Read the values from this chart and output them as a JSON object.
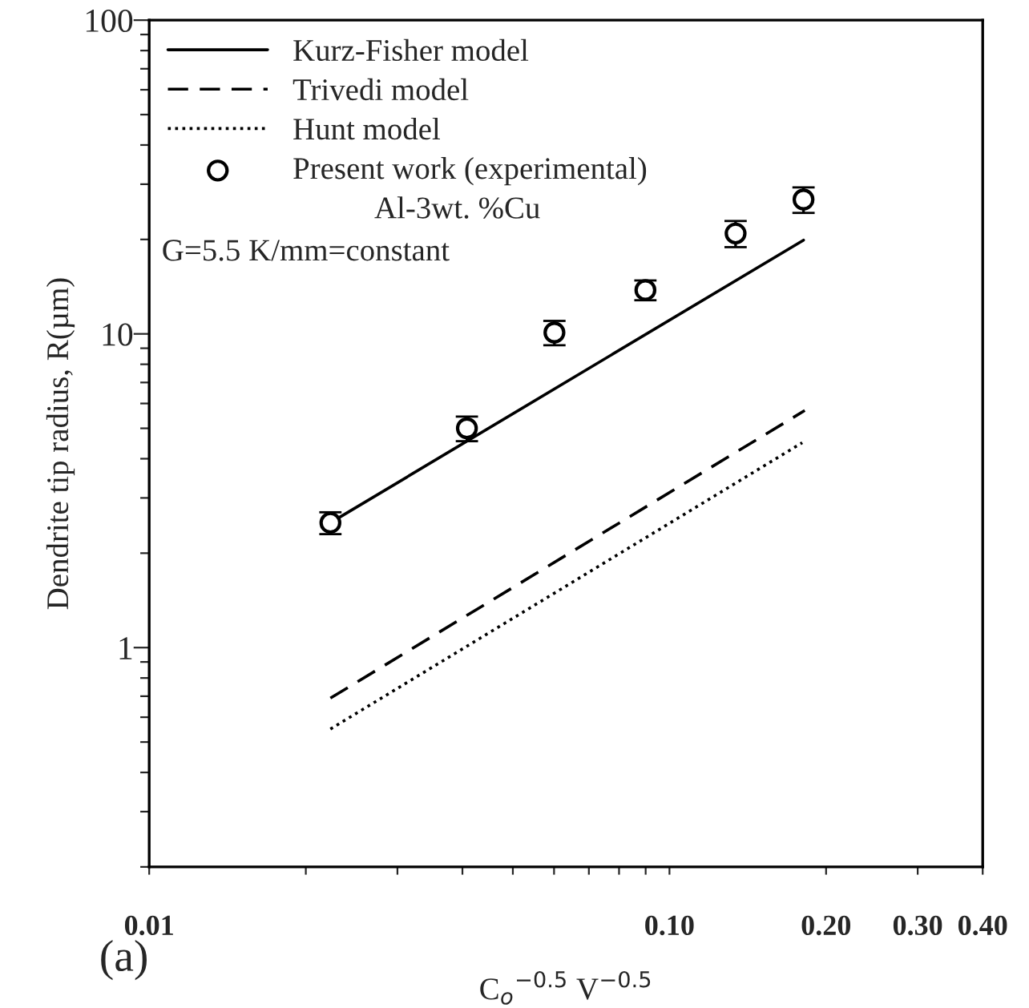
{
  "chart_data": {
    "type": "line",
    "xlabel": "C$_{o}$$^{−0.5}$ V$^{−0.5}$",
    "ylabel": "Dendrite tip radius, R(µm)",
    "annotations": [
      "Al-3wt. %Cu",
      "G=5.5 K/mm=constant",
      "(a)"
    ],
    "log": "xy",
    "legend": "top left",
    "grid": false,
    "xlim": [
      0.01,
      0.4
    ],
    "ylim": [
      0.2,
      100
    ],
    "xticks": [
      {
        "value": 0.01,
        "label": "0.01"
      },
      {
        "value": 0.02,
        "label": null
      },
      {
        "value": 0.03,
        "label": null
      },
      {
        "value": 0.04,
        "label": null
      },
      {
        "value": 0.05,
        "label": null
      },
      {
        "value": 0.06,
        "label": null
      },
      {
        "value": 0.07,
        "label": null
      },
      {
        "value": 0.08,
        "label": null
      },
      {
        "value": 0.09,
        "label": null
      },
      {
        "value": 0.1,
        "label": "0.10"
      },
      {
        "value": 0.2,
        "label": "0.20"
      },
      {
        "value": 0.3,
        "label": "0.30"
      },
      {
        "value": 0.4,
        "label": "0.40"
      }
    ],
    "yticks": [
      {
        "value": 0.2,
        "label": null
      },
      {
        "value": 0.3,
        "label": null
      },
      {
        "value": 0.4,
        "label": null
      },
      {
        "value": 0.5,
        "label": null
      },
      {
        "value": 0.6,
        "label": null
      },
      {
        "value": 0.7,
        "label": null
      },
      {
        "value": 0.8,
        "label": null
      },
      {
        "value": 0.9,
        "label": null
      },
      1,
      {
        "value": 2,
        "label": null
      },
      {
        "value": 3,
        "label": null
      },
      {
        "value": 4,
        "label": null
      },
      {
        "value": 5,
        "label": null
      },
      {
        "value": 6,
        "label": null
      },
      {
        "value": 7,
        "label": null
      },
      {
        "value": 8,
        "label": null
      },
      {
        "value": 9,
        "label": null
      },
      10,
      {
        "value": 20,
        "label": null
      },
      {
        "value": 30,
        "label": null
      },
      {
        "value": 40,
        "label": null
      },
      {
        "value": 50,
        "label": null
      },
      {
        "value": 60,
        "label": null
      },
      {
        "value": 70,
        "label": null
      },
      {
        "value": 80,
        "label": null
      },
      {
        "value": 90,
        "label": null
      },
      100
    ],
    "series": [
      {
        "name": "Kurz-Fisher model",
        "color": "#000000",
        "line_style": "solid",
        "marker": "none",
        "x": [
          0.0223,
          0.181
        ],
        "values": [
          2.5,
          19.9
        ]
      },
      {
        "name": "Trivedi model",
        "color": "#000000",
        "line_style": "dashed",
        "marker": "none",
        "x": [
          0.0223,
          0.182
        ],
        "values": [
          0.69,
          5.7
        ]
      },
      {
        "name": "Hunt model",
        "color": "#000000",
        "line_style": "dotted",
        "marker": "none",
        "x": [
          0.0223,
          0.18
        ],
        "values": [
          0.55,
          4.5
        ]
      },
      {
        "name": "Present work (experimental)",
        "type": "scatter",
        "color": "#000000",
        "marker": "circle",
        "x": [
          0.0223,
          0.0408,
          0.0601,
          0.0899,
          0.134,
          0.181
        ],
        "values": [
          2.5,
          5.0,
          10.1,
          13.8,
          20.9,
          26.8
        ],
        "errors": [
          0.2,
          0.45,
          0.9,
          1.0,
          2.0,
          2.5
        ]
      }
    ]
  }
}
